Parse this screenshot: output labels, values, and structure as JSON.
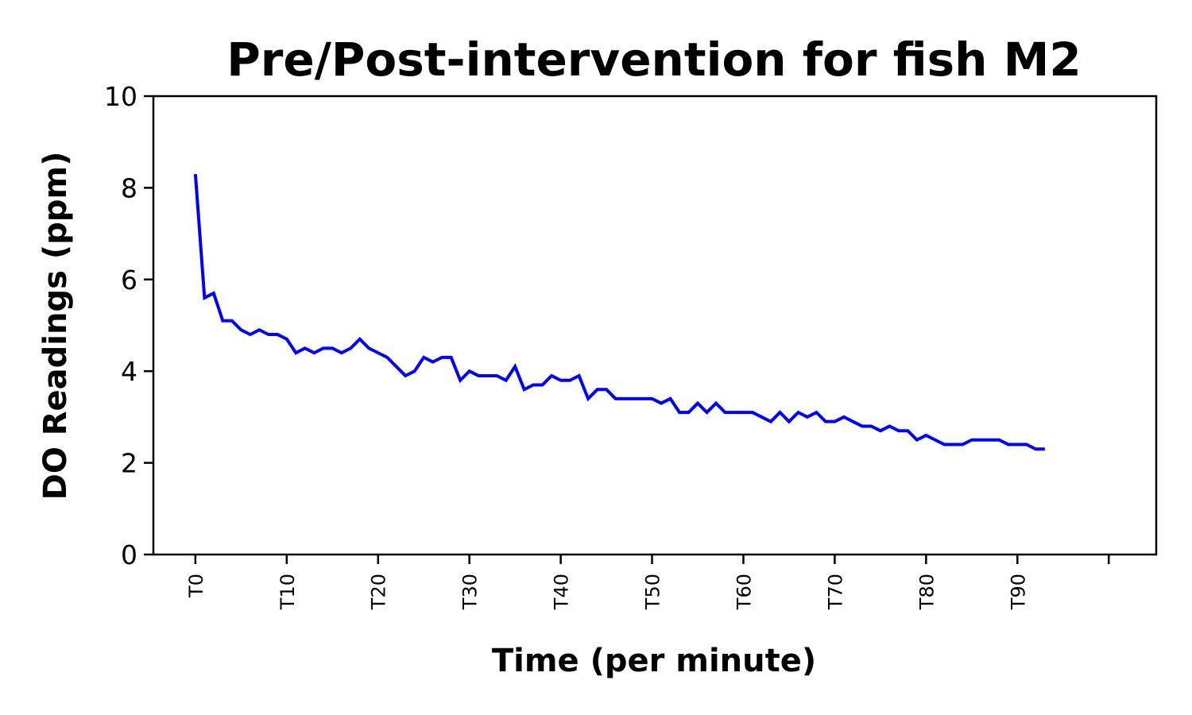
{
  "chart_data": {
    "type": "line",
    "title": "Pre/Post-intervention for fish M2",
    "xlabel": "Time (per minute)",
    "ylabel": "DO Readings (ppm)",
    "xlim": [
      -4.6,
      105.2
    ],
    "ylim": [
      0,
      10
    ],
    "yticks": [
      0,
      2,
      4,
      6,
      8,
      10
    ],
    "xticks": [
      0,
      10,
      20,
      30,
      40,
      50,
      60,
      70,
      80,
      90,
      100,
      110
    ],
    "xtick_labels": [
      "T0",
      "T10",
      "T20",
      "T30",
      "T40",
      "T50",
      "T60",
      "T70",
      "T80",
      "T90",
      "",
      ""
    ],
    "grid": false,
    "line_color": "#0000ff",
    "series": [
      {
        "x": [
          0,
          1,
          2,
          3,
          4,
          5,
          6,
          7,
          8,
          9,
          10,
          11,
          12,
          13,
          14,
          15,
          16,
          17,
          18,
          19,
          20,
          21,
          22,
          23,
          24,
          25,
          26,
          27,
          28,
          29,
          30,
          31,
          32,
          33,
          34,
          35,
          36,
          37,
          38,
          39,
          40,
          41,
          42,
          43,
          44,
          45,
          46,
          47,
          48,
          49,
          50,
          51,
          52,
          53,
          54,
          55,
          56,
          57,
          58,
          59,
          60,
          61,
          62,
          63,
          64,
          65,
          66,
          67,
          68,
          69,
          70,
          71,
          72,
          73,
          74,
          75,
          76,
          77,
          78,
          79,
          80,
          81,
          82,
          83,
          84,
          85,
          86,
          87,
          88,
          89,
          90,
          91,
          92,
          93
        ],
        "y": [
          8.3,
          5.6,
          5.7,
          5.1,
          5.1,
          4.9,
          4.8,
          4.9,
          4.8,
          4.8,
          4.7,
          4.4,
          4.5,
          4.4,
          4.5,
          4.5,
          4.4,
          4.5,
          4.7,
          4.5,
          4.4,
          4.3,
          4.1,
          3.9,
          4.0,
          4.3,
          4.2,
          4.3,
          4.3,
          3.8,
          4.0,
          3.9,
          3.9,
          3.9,
          3.8,
          4.1,
          3.6,
          3.7,
          3.7,
          3.9,
          3.8,
          3.8,
          3.9,
          3.4,
          3.6,
          3.6,
          3.4,
          3.4,
          3.4,
          3.4,
          3.4,
          3.3,
          3.4,
          3.1,
          3.1,
          3.3,
          3.1,
          3.3,
          3.1,
          3.1,
          3.1,
          3.1,
          3.0,
          2.9,
          3.1,
          2.9,
          3.1,
          3.0,
          3.1,
          2.9,
          2.9,
          3.0,
          2.9,
          2.8,
          2.8,
          2.7,
          2.8,
          2.7,
          2.7,
          2.5,
          2.6,
          2.5,
          2.4,
          2.4,
          2.4,
          2.5,
          2.5,
          2.5,
          2.5,
          2.4,
          2.4,
          2.4,
          2.3,
          2.3
        ]
      }
    ]
  }
}
